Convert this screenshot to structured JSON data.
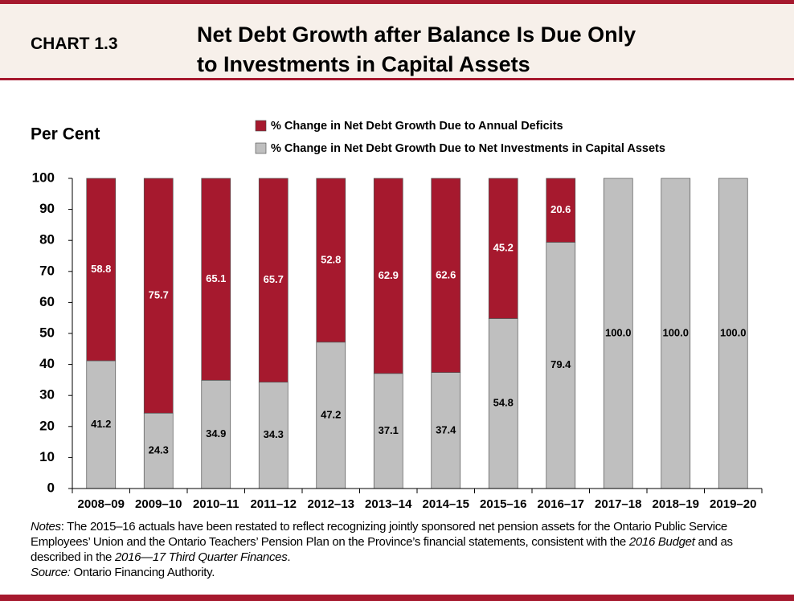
{
  "header": {
    "chart_number": "CHART 1.3",
    "title_lines": [
      "Net Debt Growth after Balance Is Due Only",
      "to Investments in Capital Assets"
    ]
  },
  "chart_data": {
    "type": "stacked_bar",
    "y_label": "Per Cent",
    "categories": [
      "2008–09",
      "2009–10",
      "2010–11",
      "2011–12",
      "2012–13",
      "2013–14",
      "2014–15",
      "2015–16",
      "2016–17",
      "2017–18",
      "2018–19",
      "2019–20"
    ],
    "series": [
      {
        "name": "% Change in Net Debt Growth Due to Net Investments in Capital Assets",
        "color": "#bfbfbf",
        "values": [
          41.2,
          24.3,
          34.9,
          34.3,
          47.2,
          37.1,
          37.4,
          54.8,
          79.4,
          100,
          100,
          100
        ],
        "value_labels": [
          "41.2",
          "24.3",
          "34.9",
          "34.3",
          "47.2",
          "37.1",
          "37.4",
          "54.8",
          "79.4",
          "100.0",
          "100.0",
          "100.0"
        ]
      },
      {
        "name": "% Change in Net Debt Growth Due to Annual Deficits",
        "color": "#a6192e",
        "values": [
          58.8,
          75.7,
          65.1,
          65.7,
          52.8,
          62.9,
          62.6,
          45.2,
          20.6,
          0,
          0,
          0
        ]
      }
    ],
    "ylim": [
      0,
      100
    ],
    "yticks": [
      0,
      10,
      20,
      30,
      40,
      50,
      60,
      70,
      80,
      90,
      100
    ]
  },
  "notes": [
    {
      "text": "Notes",
      "italic": true
    },
    {
      "text": ": The 2015–16 actuals have been restated to reflect recognizing jointly sponsored net pension assets for the Ontario Public Service Employees’ Union and the Ontario Teachers’ Pension Plan on the Province’s financial statements, consistent with the ",
      "italic": false
    },
    {
      "text": "2016 Budget",
      "italic": true
    },
    {
      "text": " and as described in the ",
      "italic": false
    },
    {
      "text": "2016—17 Third Quarter Finances",
      "italic": true
    },
    {
      "text": ".",
      "italic": false
    }
  ],
  "source": [
    {
      "text": "Source:",
      "italic": true
    },
    {
      "text": " Ontario Financing Authority.",
      "italic": false
    }
  ]
}
